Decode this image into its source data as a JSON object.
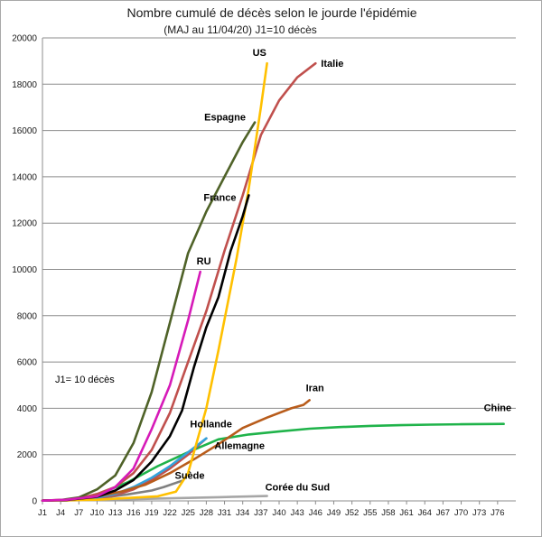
{
  "chart_data": {
    "type": "line",
    "title": "Nombre cumulé de décès selon le jourde l'épidémie",
    "subtitle": "(MAJ au 11/04/20)  J1=10 décès",
    "annotation": "J1= 10 décès",
    "ylim": [
      0,
      20000
    ],
    "yticks": [
      0,
      2000,
      4000,
      6000,
      8000,
      10000,
      12000,
      14000,
      16000,
      18000,
      20000
    ],
    "xlim": [
      1,
      79
    ],
    "xticks": [
      "J1",
      "J4",
      "J7",
      "J10",
      "J13",
      "J16",
      "J19",
      "J22",
      "J25",
      "J28",
      "J31",
      "J34",
      "J37",
      "J40",
      "J43",
      "J46",
      "J49",
      "J52",
      "J55",
      "J58",
      "J61",
      "J64",
      "J67",
      "J70",
      "J73",
      "J76"
    ],
    "grid": "horizontal",
    "legend": "inline labels",
    "series": [
      {
        "name": "Chine",
        "color": "#1fb34a",
        "x": [
          1,
          5,
          10,
          15,
          20,
          25,
          30,
          35,
          40,
          45,
          50,
          55,
          60,
          65,
          70,
          75,
          77
        ],
        "y": [
          10,
          40,
          260,
          800,
          1500,
          2100,
          2660,
          2870,
          3000,
          3120,
          3190,
          3240,
          3270,
          3295,
          3310,
          3320,
          3326
        ]
      },
      {
        "name": "Corée du Sud",
        "color": "#a6a6a6",
        "x": [
          1,
          5,
          10,
          15,
          20,
          25,
          30,
          35,
          38
        ],
        "y": [
          10,
          20,
          40,
          70,
          100,
          130,
          160,
          190,
          210
        ]
      },
      {
        "name": "Suède",
        "color": "#808080",
        "x": [
          1,
          5,
          10,
          15,
          19,
          21,
          24
        ],
        "y": [
          10,
          40,
          110,
          280,
          450,
          600,
          870
        ]
      },
      {
        "name": "Allemagne",
        "color": "#c0504d",
        "x": [
          1,
          5,
          10,
          13,
          16,
          19,
          22,
          25,
          28
        ],
        "y": [
          10,
          20,
          100,
          250,
          500,
          900,
          1400,
          2000,
          2700
        ]
      },
      {
        "name": "Hollande",
        "color": "#33a3dc",
        "x": [
          1,
          5,
          10,
          13,
          16,
          19,
          22,
          25,
          28
        ],
        "y": [
          10,
          30,
          140,
          300,
          600,
          1000,
          1500,
          2100,
          2700
        ]
      },
      {
        "name": "Iran",
        "color": "#b85c1b",
        "x": [
          1,
          5,
          10,
          14,
          18,
          22,
          26,
          30,
          34,
          38,
          42,
          44,
          45
        ],
        "y": [
          10,
          50,
          190,
          400,
          700,
          1200,
          1800,
          2450,
          3150,
          3600,
          4000,
          4150,
          4350
        ]
      },
      {
        "name": "Italie",
        "color": "#c0504d",
        "x": [
          1,
          4,
          7,
          10,
          13,
          16,
          19,
          22,
          25,
          28,
          31,
          34,
          37,
          40,
          43,
          46
        ],
        "y": [
          10,
          30,
          100,
          300,
          600,
          1200,
          2200,
          3800,
          6000,
          8200,
          10800,
          13200,
          15800,
          17300,
          18300,
          18900
        ]
      },
      {
        "name": "US",
        "color": "#ffc000",
        "x": [
          1,
          10,
          20,
          23,
          25,
          28,
          30,
          33,
          35,
          37,
          38
        ],
        "y": [
          10,
          50,
          200,
          400,
          1200,
          4000,
          6500,
          10500,
          13500,
          17000,
          18900
        ]
      },
      {
        "name": "France",
        "color": "#000000",
        "x": [
          1,
          5,
          10,
          13,
          16,
          19,
          22,
          24,
          26,
          28,
          30,
          32,
          34,
          35
        ],
        "y": [
          10,
          40,
          180,
          450,
          900,
          1700,
          2800,
          3900,
          5800,
          7500,
          8800,
          10800,
          12300,
          13200
        ]
      },
      {
        "name": "Espagne",
        "color": "#4f6228",
        "x": [
          1,
          4,
          7,
          10,
          13,
          16,
          19,
          22,
          25,
          28,
          31,
          34,
          36
        ],
        "y": [
          10,
          40,
          150,
          500,
          1100,
          2500,
          4700,
          7700,
          10700,
          12500,
          14000,
          15500,
          16350
        ]
      },
      {
        "name": "RU",
        "color": "#d61ab8",
        "x": [
          1,
          5,
          10,
          13,
          16,
          19,
          22,
          25,
          27
        ],
        "y": [
          10,
          50,
          200,
          600,
          1400,
          3100,
          5000,
          7800,
          9900
        ]
      }
    ]
  }
}
